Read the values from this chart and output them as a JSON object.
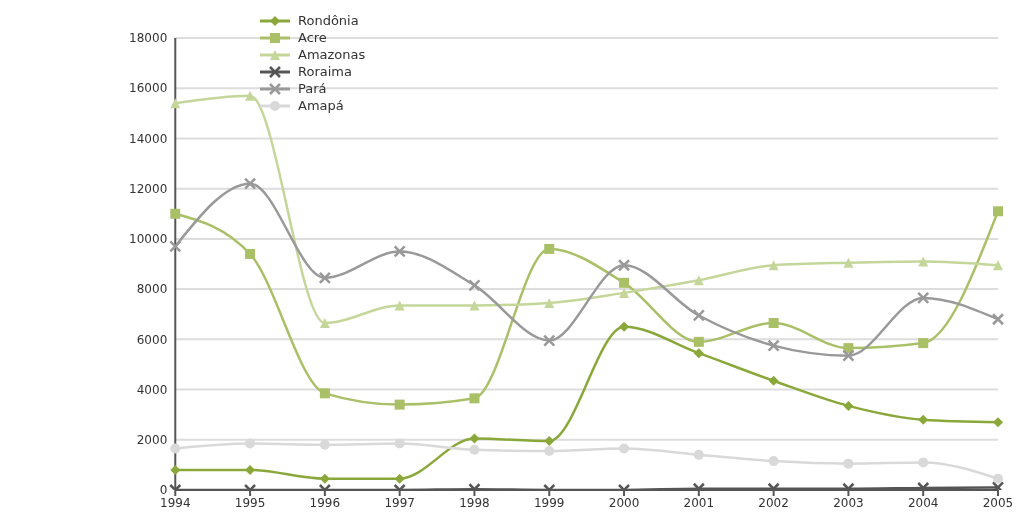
{
  "chart_data": {
    "type": "line",
    "categories": [
      "1994",
      "1995",
      "1996",
      "1997",
      "1998",
      "1999",
      "2000",
      "2001",
      "2002",
      "2003",
      "2004",
      "2005"
    ],
    "series": [
      {
        "name": "Rondônia",
        "color": "#8aa83a",
        "marker": "diamond",
        "values": [
          800,
          800,
          450,
          450,
          2050,
          1950,
          6500,
          5450,
          4350,
          3350,
          2800,
          2700
        ]
      },
      {
        "name": "Acre",
        "color": "#a9c067",
        "marker": "square",
        "values": [
          11000,
          9400,
          3850,
          3400,
          3650,
          9600,
          8250,
          5900,
          6650,
          5650,
          5850,
          11100
        ]
      },
      {
        "name": "Amazonas",
        "color": "#c5d69a",
        "marker": "triangle",
        "values": [
          15400,
          15700,
          6650,
          7350,
          7350,
          7450,
          7850,
          8350,
          8950,
          9050,
          9100,
          8950
        ]
      },
      {
        "name": "Roraima",
        "color": "#555555",
        "marker": "cross",
        "values": [
          0,
          0,
          0,
          0,
          30,
          0,
          0,
          50,
          50,
          50,
          80,
          100
        ]
      },
      {
        "name": "Pará",
        "color": "#999999",
        "marker": "cross",
        "values": [
          9700,
          12200,
          8450,
          9500,
          8150,
          5950,
          8950,
          6950,
          5750,
          5350,
          7650,
          6800
        ]
      },
      {
        "name": "Amapá",
        "color": "#d9d9d9",
        "marker": "circle",
        "values": [
          1650,
          1850,
          1800,
          1850,
          1600,
          1550,
          1650,
          1400,
          1150,
          1050,
          1100,
          450
        ]
      }
    ],
    "ylim": [
      0,
      18000
    ],
    "yticks": [
      0,
      2000,
      4000,
      6000,
      8000,
      10000,
      12000,
      14000,
      16000,
      18000
    ],
    "grid": "y",
    "legend": "top left",
    "line_style": "solid"
  }
}
